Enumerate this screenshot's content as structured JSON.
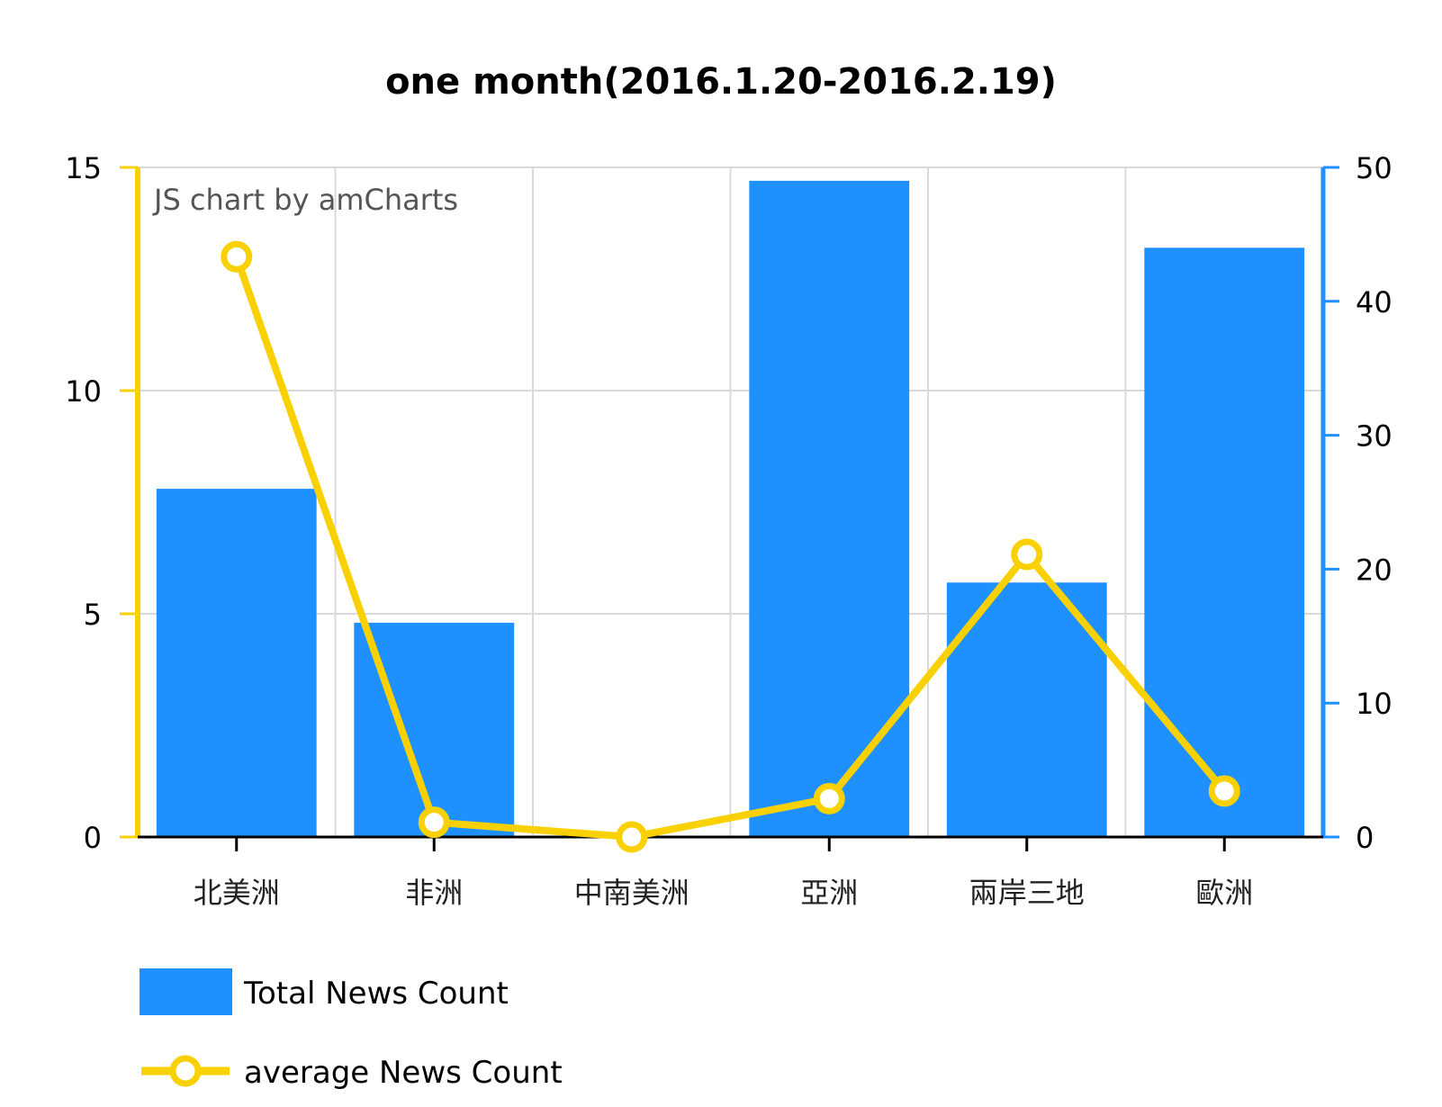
{
  "chart_data": {
    "type": "bar",
    "title": "one month(2016.1.20-2016.2.19)",
    "credit": "JS chart by amCharts",
    "categories": [
      "北美洲",
      "非洲",
      "中南美洲",
      "亞洲",
      "兩岸三地",
      "歐洲"
    ],
    "series": [
      {
        "name": "Total News Count",
        "type": "bar",
        "axis": "right",
        "color": "#1e90ff",
        "values": [
          26,
          16,
          0,
          49,
          19,
          44
        ]
      },
      {
        "name": "average News Count",
        "type": "line",
        "axis": "left",
        "color": "#f9d100",
        "values": [
          13,
          0.33,
          0,
          0.86,
          6.33,
          1.03
        ]
      }
    ],
    "y_left": {
      "ylim": [
        0,
        15
      ],
      "ticks": [
        "0",
        "5",
        "10",
        "15"
      ],
      "color": "#f9d100"
    },
    "y_right": {
      "ylim": [
        0,
        50
      ],
      "ticks": [
        "0",
        "10",
        "20",
        "30",
        "40",
        "50"
      ],
      "color": "#1e90ff"
    },
    "grid": true,
    "legend_position": "bottom-left"
  }
}
